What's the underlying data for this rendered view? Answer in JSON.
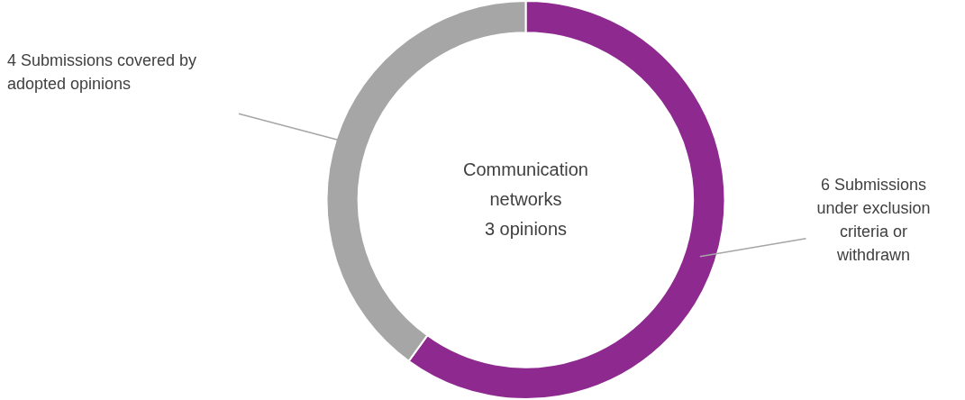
{
  "chart_data": {
    "type": "donut",
    "title": "Communication networks",
    "subtitle": "3 opinions",
    "categories": [
      "Submissions under exclusion criteria or withdrawn",
      "Submissions covered by adopted opinions"
    ],
    "values": [
      6,
      4
    ],
    "value_labels": [
      "6",
      "4"
    ],
    "colors": [
      "#8e2a8f",
      "#a6a6a6"
    ],
    "legend": false
  }
}
